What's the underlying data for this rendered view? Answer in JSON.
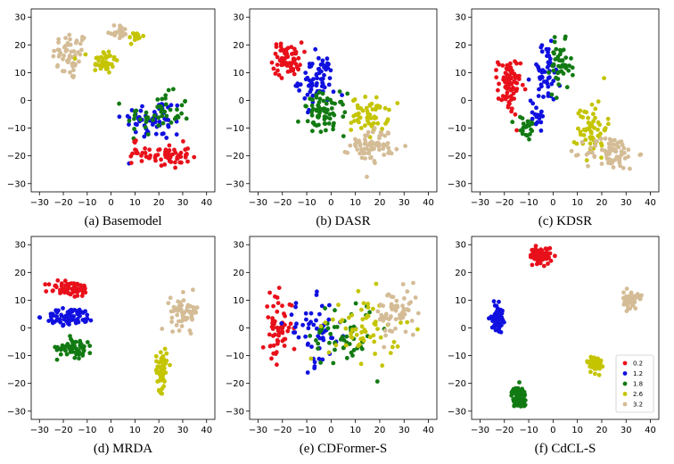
{
  "colors": {
    "0.2": "#e8101a",
    "1.2": "#1010e0",
    "1.8": "#127a12",
    "2.6": "#c4c400",
    "3.2": "#d4bc96"
  },
  "legend": {
    "labels": [
      "0.2",
      "1.2",
      "1.8",
      "2.6",
      "3.2"
    ]
  },
  "chart_data": [
    {
      "type": "scatter",
      "title": "(a) Basemodel",
      "xlim": [
        -30,
        40
      ],
      "ylim": [
        -30,
        30
      ],
      "xticks": [
        -30,
        -20,
        -10,
        0,
        10,
        20,
        30,
        40
      ],
      "yticks": [
        -30,
        -20,
        -10,
        0,
        10,
        20,
        30
      ],
      "grid": false,
      "clusters": [
        {
          "series": "3.2",
          "cx": -17,
          "cy": 16,
          "sx": 5,
          "sy": 6,
          "n": 55
        },
        {
          "series": "3.2",
          "cx": 3,
          "cy": 25,
          "sx": 3,
          "sy": 2,
          "n": 20
        },
        {
          "series": "2.6",
          "cx": -3,
          "cy": 14,
          "sx": 4,
          "sy": 3,
          "n": 40
        },
        {
          "series": "2.6",
          "cx": 10,
          "cy": 23,
          "sx": 2,
          "sy": 2,
          "n": 12
        },
        {
          "series": "1.2",
          "cx": 18,
          "cy": -7,
          "sx": 9,
          "sy": 5,
          "n": 60
        },
        {
          "series": "1.8",
          "cx": 20,
          "cy": -5,
          "sx": 9,
          "sy": 5,
          "n": 50
        },
        {
          "series": "0.2",
          "cx": 24,
          "cy": -20,
          "sx": 6,
          "sy": 3,
          "n": 55
        },
        {
          "series": "0.2",
          "cx": 10,
          "cy": -19,
          "sx": 2,
          "sy": 3,
          "n": 12
        }
      ]
    },
    {
      "type": "scatter",
      "title": "(b) DASR",
      "xlim": [
        -30,
        40
      ],
      "ylim": [
        -30,
        30
      ],
      "xticks": [
        -30,
        -20,
        -10,
        0,
        10,
        20,
        30,
        40
      ],
      "yticks": [
        -30,
        -20,
        -10,
        0,
        10,
        20,
        30
      ],
      "grid": false,
      "clusters": [
        {
          "series": "0.2",
          "cx": -18,
          "cy": 15,
          "sx": 4,
          "sy": 4,
          "n": 65
        },
        {
          "series": "1.2",
          "cx": -6,
          "cy": 7,
          "sx": 5,
          "sy": 6,
          "n": 70
        },
        {
          "series": "1.8",
          "cx": -3,
          "cy": -5,
          "sx": 6,
          "sy": 5,
          "n": 70
        },
        {
          "series": "2.6",
          "cx": 16,
          "cy": -5,
          "sx": 5,
          "sy": 4,
          "n": 60
        },
        {
          "series": "3.2",
          "cx": 17,
          "cy": -16,
          "sx": 6,
          "sy": 4,
          "n": 70
        }
      ]
    },
    {
      "type": "scatter",
      "title": "(c) KDSR",
      "xlim": [
        -30,
        40
      ],
      "ylim": [
        -30,
        30
      ],
      "xticks": [
        -30,
        -20,
        -10,
        0,
        10,
        20,
        30,
        40
      ],
      "yticks": [
        -30,
        -20,
        -10,
        0,
        10,
        20,
        30
      ],
      "grid": false,
      "clusters": [
        {
          "series": "0.2",
          "cx": -18,
          "cy": 5,
          "sx": 3,
          "sy": 7,
          "n": 75
        },
        {
          "series": "1.2",
          "cx": -3,
          "cy": 10,
          "sx": 4,
          "sy": 7,
          "n": 55
        },
        {
          "series": "1.8",
          "cx": 3,
          "cy": 12,
          "sx": 3,
          "sy": 6,
          "n": 45
        },
        {
          "series": "1.8",
          "cx": -11,
          "cy": -10,
          "sx": 3,
          "sy": 3,
          "n": 25
        },
        {
          "series": "1.2",
          "cx": -7,
          "cy": -5,
          "sx": 3,
          "sy": 3,
          "n": 15
        },
        {
          "series": "2.6",
          "cx": 16,
          "cy": -10,
          "sx": 4,
          "sy": 7,
          "n": 60
        },
        {
          "series": "3.2",
          "cx": 24,
          "cy": -19,
          "sx": 7,
          "sy": 4,
          "n": 75
        }
      ]
    },
    {
      "type": "scatter",
      "title": "(d) MRDA",
      "xlim": [
        -30,
        40
      ],
      "ylim": [
        -30,
        30
      ],
      "xticks": [
        -30,
        -20,
        -10,
        0,
        10,
        20,
        30,
        40
      ],
      "yticks": [
        -30,
        -20,
        -10,
        0,
        10,
        20,
        30
      ],
      "grid": false,
      "clusters": [
        {
          "series": "0.2",
          "cx": -17,
          "cy": 14,
          "sx": 6,
          "sy": 2,
          "n": 65
        },
        {
          "series": "1.2",
          "cx": -17,
          "cy": 4,
          "sx": 7,
          "sy": 2,
          "n": 75
        },
        {
          "series": "1.8",
          "cx": -15,
          "cy": -7,
          "sx": 5,
          "sy": 2.5,
          "n": 55
        },
        {
          "series": "2.6",
          "cx": 21,
          "cy": -15,
          "sx": 1.5,
          "sy": 5,
          "n": 60
        },
        {
          "series": "3.2",
          "cx": 31,
          "cy": 6,
          "sx": 4,
          "sy": 4,
          "n": 60
        }
      ]
    },
    {
      "type": "scatter",
      "title": "(e) CDFormer-S",
      "xlim": [
        -30,
        40
      ],
      "ylim": [
        -30,
        30
      ],
      "xticks": [
        -30,
        -20,
        -10,
        0,
        10,
        20,
        30,
        40
      ],
      "yticks": [
        -30,
        -20,
        -10,
        0,
        10,
        20,
        30
      ],
      "grid": false,
      "clusters": [
        {
          "series": "0.2",
          "cx": -22,
          "cy": 0,
          "sx": 4,
          "sy": 8,
          "n": 60
        },
        {
          "series": "1.2",
          "cx": -7,
          "cy": -2,
          "sx": 8,
          "sy": 8,
          "n": 55
        },
        {
          "series": "1.8",
          "cx": 5,
          "cy": -2,
          "sx": 9,
          "sy": 8,
          "n": 55
        },
        {
          "series": "2.6",
          "cx": 14,
          "cy": 0,
          "sx": 10,
          "sy": 8,
          "n": 60
        },
        {
          "series": "3.2",
          "cx": 27,
          "cy": 5,
          "sx": 6,
          "sy": 6,
          "n": 65
        }
      ]
    },
    {
      "type": "scatter",
      "title": "(f) CdCL-S",
      "xlim": [
        -30,
        40
      ],
      "ylim": [
        -30,
        30
      ],
      "xticks": [
        -30,
        -20,
        -10,
        0,
        10,
        20,
        30,
        40
      ],
      "yticks": [
        -30,
        -20,
        -10,
        0,
        10,
        20,
        30
      ],
      "grid": false,
      "legend_position": "lower right",
      "clusters": [
        {
          "series": "0.2",
          "cx": -5,
          "cy": 26,
          "sx": 3,
          "sy": 2,
          "n": 70
        },
        {
          "series": "1.2",
          "cx": -23,
          "cy": 4,
          "sx": 1.5,
          "sy": 3,
          "n": 70
        },
        {
          "series": "1.8",
          "cx": -14,
          "cy": -25,
          "sx": 2,
          "sy": 2.5,
          "n": 70
        },
        {
          "series": "2.6",
          "cx": 17,
          "cy": -13,
          "sx": 2,
          "sy": 2,
          "n": 65
        },
        {
          "series": "3.2",
          "cx": 32,
          "cy": 10,
          "sx": 2,
          "sy": 2,
          "n": 70
        }
      ]
    }
  ]
}
